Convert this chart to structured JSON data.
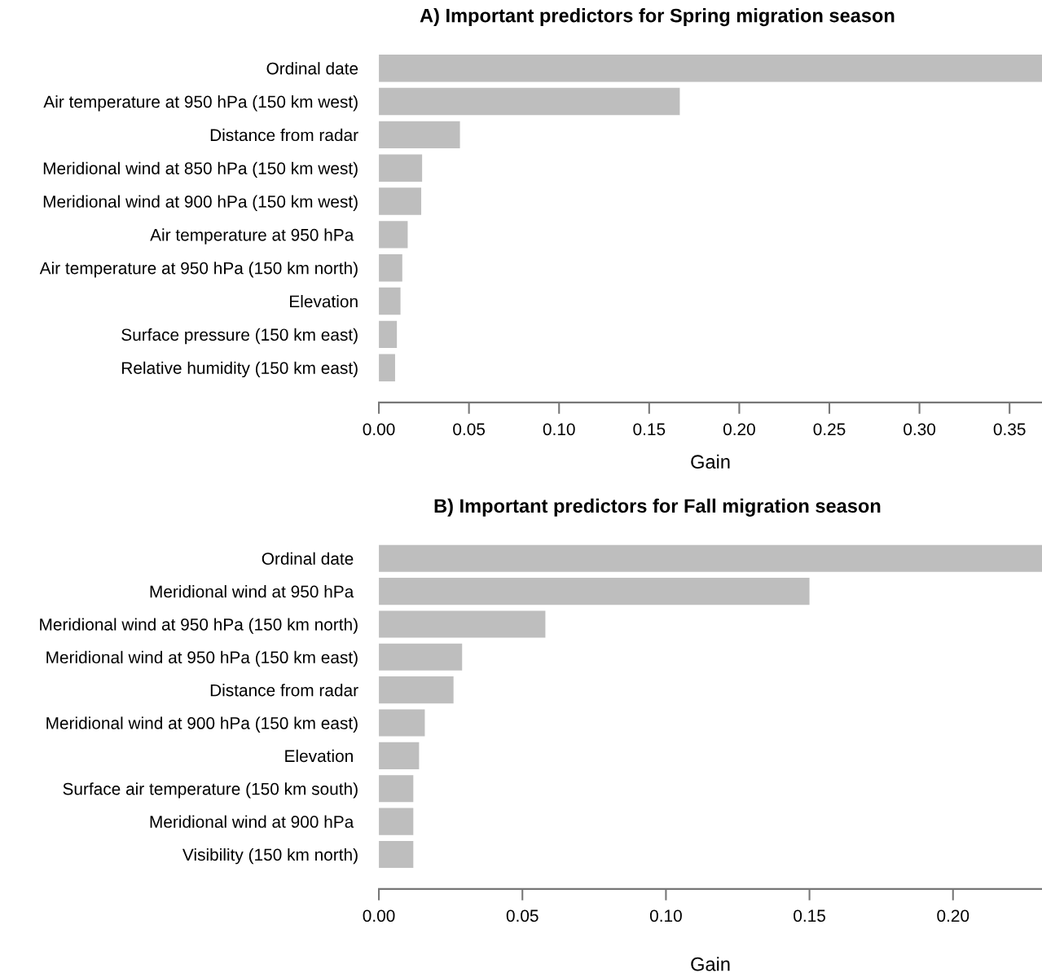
{
  "chart_data": [
    {
      "type": "bar",
      "orientation": "horizontal",
      "title": "A) Important predictors for Spring migration season",
      "xlabel": "Gain",
      "categories": [
        "Ordinal date",
        "Air temperature at 950 hPa (150 km west)",
        "Distance from radar",
        "Meridional wind at 850 hPa (150 km west)",
        "Meridional wind at 900 hPa (150 km west)",
        "Air temperature at 950 hPa ",
        "Air temperature at 950 hPa (150 km north)",
        "Elevation",
        "Surface pressure (150 km east)",
        "Relative humidity (150 km east)"
      ],
      "values": [
        0.368,
        0.167,
        0.045,
        0.024,
        0.0235,
        0.016,
        0.013,
        0.012,
        0.01,
        0.009
      ],
      "color": "#bebebe",
      "xlim": [
        0,
        0.368
      ],
      "xticks": [
        {
          "value": 0,
          "label": "0.00"
        },
        0.05,
        {
          "value": 0.1,
          "label": "0.10"
        },
        0.15,
        {
          "value": 0.2,
          "label": "0.20"
        },
        0.25,
        {
          "value": 0.3,
          "label": "0.30"
        },
        0.35
      ],
      "grid": false,
      "legend": false
    },
    {
      "type": "bar",
      "orientation": "horizontal",
      "title": "B) Important predictors for Fall migration season",
      "xlabel": "Gain",
      "categories": [
        "Ordinal date ",
        "Meridional wind at 950 hPa ",
        "Meridional wind at 950 hPa (150 km north)",
        "Meridional wind at 950 hPa (150 km east)",
        "Distance from radar",
        "Meridional wind at 900 hPa (150 km east)",
        "Elevation ",
        "Surface air temperature (150 km south)",
        "Meridional wind at 900 hPa ",
        "Visibility (150 km north)"
      ],
      "values": [
        0.231,
        0.15,
        0.058,
        0.029,
        0.026,
        0.016,
        0.014,
        0.012,
        0.012,
        0.012
      ],
      "color": "#bebebe",
      "xlim": [
        0,
        0.231
      ],
      "xticks": [
        {
          "value": 0,
          "label": "0.00"
        },
        0.05,
        {
          "value": 0.1,
          "label": "0.10"
        },
        0.15,
        {
          "value": 0.2,
          "label": "0.20"
        }
      ],
      "grid": false,
      "legend": false
    }
  ]
}
